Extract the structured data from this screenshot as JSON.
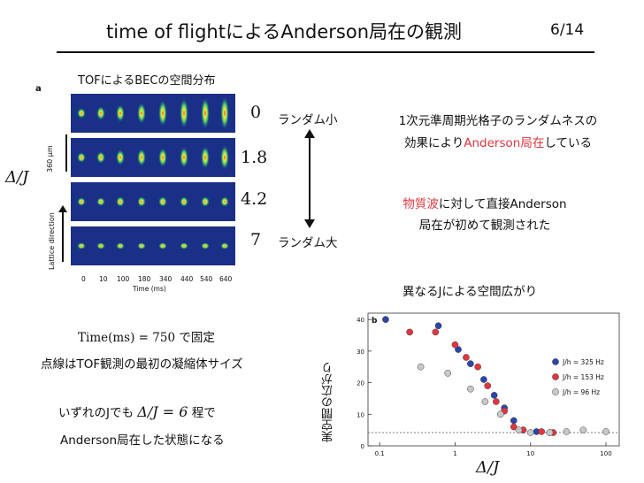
{
  "header": {
    "title": "time of flightによるAnderson局在の観測",
    "page": "6/14"
  },
  "figure_left": {
    "subtitle": "TOFによるBECの空間分布",
    "panel_label": "a",
    "scale_label": "360 μm",
    "axis_y_label": "Lattice direction",
    "delta_label": "Δ/J",
    "x_ticks": [
      "0",
      "10",
      "100",
      "180",
      "340",
      "440",
      "540",
      "640"
    ],
    "x_label": "Time (ms)",
    "j_values": [
      "0",
      "1.8",
      "4.2",
      "7"
    ],
    "rand_small": "ランダム小",
    "rand_large": "ランダム大"
  },
  "right_text": {
    "line1": "1次元準周期光格子のランダムネスの",
    "line2_a": "効果により",
    "line2_red": "Anderson局在",
    "line2_b": "している",
    "line3_red": "物質波",
    "line3_b": "に対して直接Anderson",
    "line4": "局在が初めて観測された"
  },
  "left_notes": {
    "time_formula": "Time(ms) = 750",
    "time_suffix": "で固定",
    "dotted_note": "点線はTOF観測の最初の凝縮体サイズ",
    "any_j_prefix": "いずれのJでも",
    "any_j_formula": "Δ/J = 6",
    "any_j_suffix": "程で",
    "state_note": "Anderson局在した状態になる"
  },
  "chart_title": "異なるJによる空間広がり",
  "chart_data": {
    "type": "scatter",
    "panel_label": "b",
    "xscale": "log",
    "xlim": [
      0.07,
      150
    ],
    "ylim": [
      0,
      42
    ],
    "x_ticks": [
      "0.1",
      "1",
      "10",
      "100"
    ],
    "y_ticks": [
      "0",
      "10",
      "20",
      "30",
      "40"
    ],
    "ylabel": "実空間の広がり",
    "xlabel": "Δ/J",
    "dashed_y": 4.2,
    "series": [
      {
        "name": "J/h = 325 Hz",
        "color": "#2c45a8",
        "points": [
          [
            0.12,
            40
          ],
          [
            0.6,
            38
          ],
          [
            1.1,
            30.5
          ],
          [
            1.6,
            26
          ],
          [
            2.4,
            21
          ],
          [
            3.3,
            16
          ],
          [
            4.5,
            12
          ],
          [
            6.0,
            8
          ],
          [
            8,
            5
          ],
          [
            12,
            4.5
          ],
          [
            18,
            4.2
          ]
        ]
      },
      {
        "name": "J/h = 153 Hz",
        "color": "#e2363e",
        "points": [
          [
            0.25,
            36
          ],
          [
            0.55,
            36
          ],
          [
            1.0,
            32
          ],
          [
            1.4,
            28
          ],
          [
            2.0,
            25
          ],
          [
            2.7,
            19
          ],
          [
            3.5,
            14
          ],
          [
            4.5,
            11
          ],
          [
            6,
            6
          ],
          [
            8,
            5
          ],
          [
            14,
            4.5
          ],
          [
            20,
            4.2
          ]
        ]
      },
      {
        "name": "J/h = 96 Hz",
        "color": "#c8c8c8",
        "points": [
          [
            0.35,
            25
          ],
          [
            0.8,
            23
          ],
          [
            1.6,
            18
          ],
          [
            2.5,
            14
          ],
          [
            4,
            10
          ],
          [
            7,
            5
          ],
          [
            10,
            4.2
          ],
          [
            18,
            4.2
          ],
          [
            30,
            4.5
          ],
          [
            50,
            5
          ],
          [
            100,
            4.5
          ]
        ]
      }
    ]
  }
}
